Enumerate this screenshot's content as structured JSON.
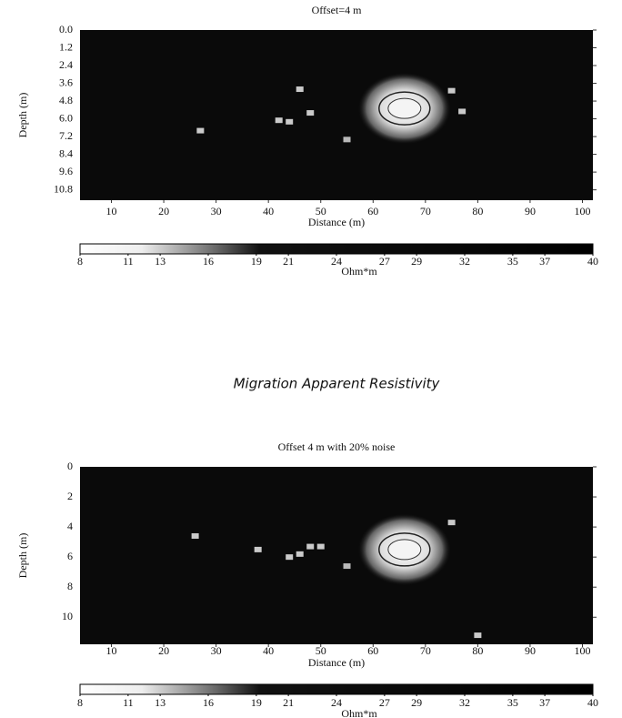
{
  "caption": "Migration Apparent Resistivity",
  "chart_data": [
    {
      "type": "heatmap",
      "title": "Offset=4 m",
      "xlabel": "Distance (m)",
      "ylabel": "Depth (m)",
      "xlim": [
        4,
        102
      ],
      "ylim": [
        0,
        11.5
      ],
      "xticks": [
        10,
        20,
        30,
        40,
        50,
        60,
        70,
        80,
        90,
        100
      ],
      "yticks": [
        {
          "value": 0,
          "label": "0.0"
        },
        1.2,
        2.4,
        3.6,
        4.8,
        {
          "value": 6,
          "label": "6.0"
        },
        7.2,
        8.4,
        9.6,
        10.8
      ],
      "invert_y": true,
      "clim": [
        8,
        40
      ],
      "colorbar_label": "Ohm*m",
      "colorbar_ticks": [
        8,
        11,
        13,
        16,
        19,
        21,
        24,
        27,
        29,
        32,
        35,
        37,
        40
      ],
      "points": {
        "x": [
          66,
          27,
          46,
          48,
          42,
          44,
          55,
          75,
          77
        ],
        "y": [
          5.3,
          6.8,
          4.0,
          5.6,
          6.1,
          6.2,
          7.4,
          4.1,
          5.5
        ],
        "values": [
          8,
          11,
          11,
          11,
          11,
          11,
          12,
          11,
          11
        ]
      }
    },
    {
      "type": "heatmap",
      "title": "Offset 4 m with 20% noise",
      "xlabel": "Distance (m)",
      "ylabel": "Depth (m)",
      "xlim": [
        4,
        102
      ],
      "ylim": [
        0,
        11.8
      ],
      "xticks": [
        10,
        20,
        30,
        40,
        50,
        60,
        70,
        80,
        90,
        100
      ],
      "yticks": [
        0,
        2,
        4,
        6,
        8,
        10
      ],
      "invert_y": true,
      "clim": [
        8,
        40
      ],
      "colorbar_label": "Ohm*m",
      "colorbar_ticks": [
        8,
        11,
        13,
        16,
        19,
        21,
        24,
        27,
        29,
        32,
        35,
        37,
        40
      ],
      "points": {
        "x": [
          66,
          26,
          38,
          44,
          46,
          48,
          50,
          55,
          75,
          80
        ],
        "y": [
          5.5,
          4.6,
          5.5,
          6.0,
          5.8,
          5.3,
          5.3,
          6.6,
          3.7,
          11.2
        ],
        "values": [
          8,
          11,
          11,
          11,
          11,
          11,
          11,
          12,
          11,
          11
        ]
      }
    }
  ]
}
